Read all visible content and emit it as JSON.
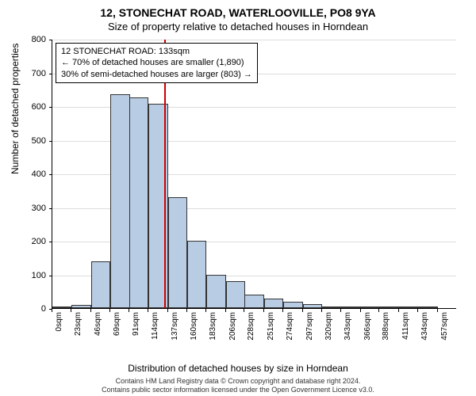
{
  "title_main": "12, STONECHAT ROAD, WATERLOOVILLE, PO8 9YA",
  "title_sub": "Size of property relative to detached houses in Horndean",
  "y_axis_label": "Number of detached properties",
  "x_axis_label": "Distribution of detached houses by size in Horndean",
  "footer_line1": "Contains HM Land Registry data © Crown copyright and database right 2024.",
  "footer_line2": "Contains public sector information licensed under the Open Government Licence v3.0.",
  "info_box": {
    "line1": "12 STONECHAT ROAD: 133sqm",
    "line2": "← 70% of detached houses are smaller (1,890)",
    "line3": "30% of semi-detached houses are larger (803) →"
  },
  "chart": {
    "type": "histogram",
    "background_color": "#ffffff",
    "grid_color": "#dddddd",
    "bar_fill": "#b8cce4",
    "bar_stroke": "#333333",
    "marker_color": "#cc0000",
    "marker_x_value": 133,
    "ylim": [
      0,
      800
    ],
    "ytick_step": 100,
    "x_bin_width": 23,
    "x_tick_values": [
      0,
      23,
      46,
      69,
      91,
      114,
      137,
      160,
      183,
      206,
      228,
      251,
      274,
      297,
      320,
      343,
      366,
      388,
      411,
      434,
      457
    ],
    "x_tick_unit": "sqm",
    "bars": [
      {
        "x_start": 0,
        "value": 5
      },
      {
        "x_start": 23,
        "value": 10
      },
      {
        "x_start": 46,
        "value": 140
      },
      {
        "x_start": 69,
        "value": 635
      },
      {
        "x_start": 91,
        "value": 625
      },
      {
        "x_start": 114,
        "value": 608
      },
      {
        "x_start": 137,
        "value": 330
      },
      {
        "x_start": 160,
        "value": 200
      },
      {
        "x_start": 183,
        "value": 100
      },
      {
        "x_start": 206,
        "value": 80
      },
      {
        "x_start": 228,
        "value": 40
      },
      {
        "x_start": 251,
        "value": 28
      },
      {
        "x_start": 274,
        "value": 20
      },
      {
        "x_start": 297,
        "value": 12
      },
      {
        "x_start": 320,
        "value": 3
      },
      {
        "x_start": 343,
        "value": 3
      },
      {
        "x_start": 366,
        "value": 2
      },
      {
        "x_start": 388,
        "value": 2
      },
      {
        "x_start": 411,
        "value": 2
      },
      {
        "x_start": 434,
        "value": 2
      }
    ],
    "title_fontsize": 14,
    "label_fontsize": 12,
    "tick_fontsize": 11
  }
}
